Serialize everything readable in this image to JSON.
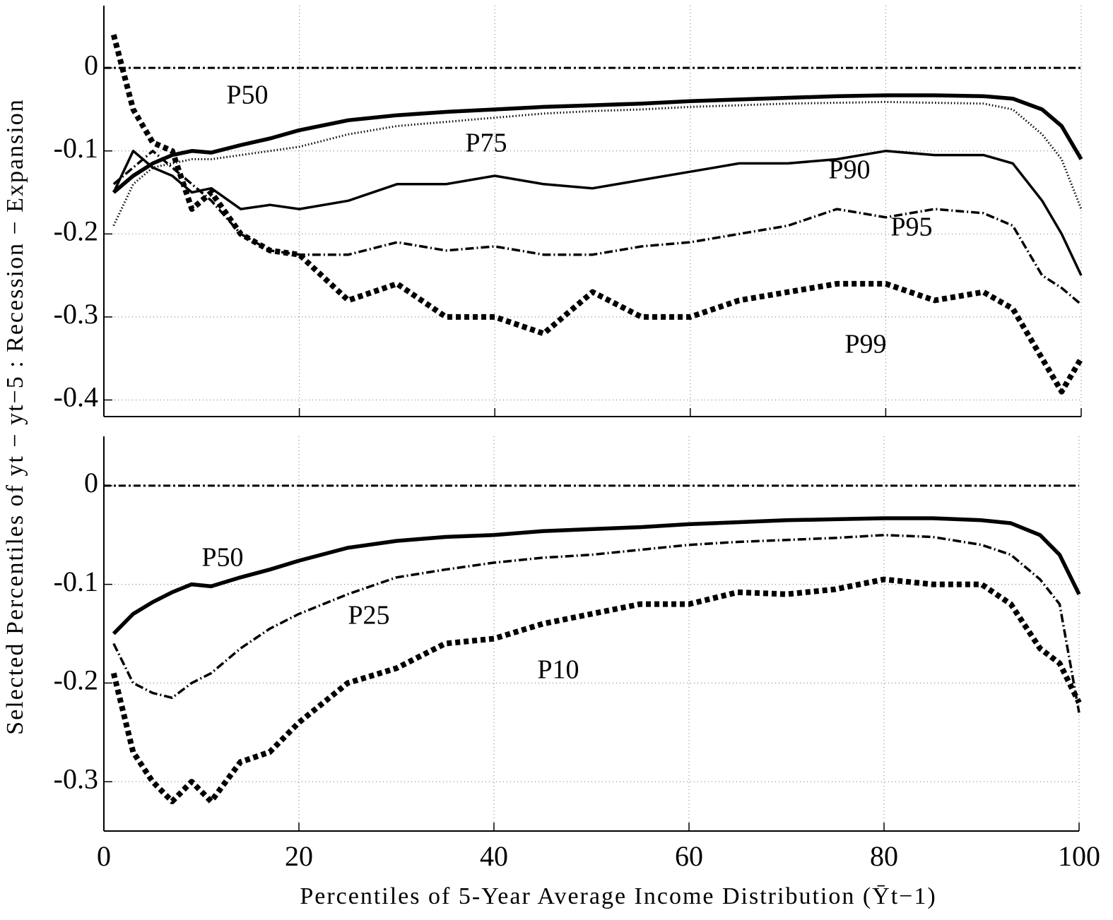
{
  "chart_data": [
    {
      "type": "line",
      "x": [
        1,
        3,
        5,
        7,
        9,
        11,
        14,
        17,
        20,
        25,
        30,
        35,
        40,
        45,
        50,
        55,
        60,
        65,
        70,
        75,
        80,
        85,
        90,
        93,
        96,
        98,
        100
      ],
      "series": [
        {
          "name": "P50",
          "color": "#000000",
          "style": "solid",
          "weight": "thick",
          "values": [
            -0.15,
            -0.13,
            -0.115,
            -0.105,
            -0.1,
            -0.102,
            -0.093,
            -0.085,
            -0.075,
            -0.063,
            -0.057,
            -0.053,
            -0.05,
            -0.047,
            -0.045,
            -0.043,
            -0.04,
            -0.038,
            -0.036,
            -0.034,
            -0.033,
            -0.033,
            -0.034,
            -0.037,
            -0.05,
            -0.07,
            -0.11
          ]
        },
        {
          "name": "P75",
          "color": "#000000",
          "style": "dotted",
          "weight": "thin",
          "values": [
            -0.19,
            -0.14,
            -0.12,
            -0.115,
            -0.11,
            -0.11,
            -0.105,
            -0.1,
            -0.095,
            -0.08,
            -0.07,
            -0.065,
            -0.06,
            -0.055,
            -0.052,
            -0.05,
            -0.047,
            -0.045,
            -0.043,
            -0.042,
            -0.041,
            -0.042,
            -0.043,
            -0.05,
            -0.08,
            -0.11,
            -0.17
          ]
        },
        {
          "name": "P90",
          "color": "#000000",
          "style": "solid",
          "weight": "thin",
          "values": [
            -0.15,
            -0.1,
            -0.12,
            -0.13,
            -0.15,
            -0.145,
            -0.17,
            -0.165,
            -0.17,
            -0.16,
            -0.14,
            -0.14,
            -0.13,
            -0.14,
            -0.145,
            -0.135,
            -0.125,
            -0.115,
            -0.115,
            -0.11,
            -0.1,
            -0.105,
            -0.105,
            -0.115,
            -0.16,
            -0.2,
            -0.25
          ]
        },
        {
          "name": "P95",
          "color": "#000000",
          "style": "dash-dot",
          "weight": "thin",
          "values": [
            -0.14,
            -0.12,
            -0.1,
            -0.12,
            -0.14,
            -0.16,
            -0.2,
            -0.22,
            -0.225,
            -0.225,
            -0.21,
            -0.22,
            -0.215,
            -0.225,
            -0.225,
            -0.215,
            -0.21,
            -0.2,
            -0.19,
            -0.17,
            -0.18,
            -0.17,
            -0.175,
            -0.19,
            -0.25,
            -0.265,
            -0.285
          ]
        },
        {
          "name": "P99",
          "color": "#000000",
          "style": "dotted",
          "weight": "thick",
          "values": [
            0.04,
            -0.05,
            -0.09,
            -0.1,
            -0.17,
            -0.15,
            -0.2,
            -0.22,
            -0.225,
            -0.28,
            -0.26,
            -0.3,
            -0.3,
            -0.32,
            -0.27,
            -0.3,
            -0.3,
            -0.28,
            -0.27,
            -0.26,
            -0.26,
            -0.28,
            -0.27,
            -0.29,
            -0.35,
            -0.39,
            -0.35
          ]
        }
      ],
      "annotations": [
        "P50",
        "P75",
        "P90",
        "P95",
        "P99"
      ],
      "xlim": [
        0,
        100
      ],
      "xticks": [
        0,
        20,
        40,
        60,
        80,
        100
      ],
      "xtick_labels": false,
      "ylim": [
        -0.42,
        0.075
      ],
      "yticks": [
        -0.4,
        -0.3,
        -0.2,
        -0.1,
        0
      ],
      "grid": true,
      "zero_line": true
    },
    {
      "type": "line",
      "x": [
        1,
        3,
        5,
        7,
        9,
        11,
        14,
        17,
        20,
        25,
        30,
        35,
        40,
        45,
        50,
        55,
        60,
        65,
        70,
        75,
        80,
        85,
        90,
        93,
        96,
        98,
        100
      ],
      "series": [
        {
          "name": "P50",
          "color": "#000000",
          "style": "solid",
          "weight": "thick",
          "values": [
            -0.15,
            -0.13,
            -0.118,
            -0.108,
            -0.1,
            -0.102,
            -0.093,
            -0.085,
            -0.076,
            -0.063,
            -0.056,
            -0.052,
            -0.05,
            -0.046,
            -0.044,
            -0.042,
            -0.039,
            -0.037,
            -0.035,
            -0.034,
            -0.033,
            -0.033,
            -0.035,
            -0.038,
            -0.05,
            -0.07,
            -0.11
          ]
        },
        {
          "name": "P25",
          "color": "#000000",
          "style": "dash-dot",
          "weight": "thin",
          "values": [
            -0.16,
            -0.2,
            -0.21,
            -0.215,
            -0.2,
            -0.19,
            -0.165,
            -0.145,
            -0.13,
            -0.11,
            -0.093,
            -0.085,
            -0.078,
            -0.073,
            -0.07,
            -0.065,
            -0.06,
            -0.057,
            -0.055,
            -0.053,
            -0.05,
            -0.052,
            -0.06,
            -0.07,
            -0.095,
            -0.12,
            -0.23
          ]
        },
        {
          "name": "P10",
          "color": "#000000",
          "style": "dotted",
          "weight": "thick",
          "values": [
            -0.19,
            -0.27,
            -0.3,
            -0.32,
            -0.3,
            -0.32,
            -0.28,
            -0.27,
            -0.24,
            -0.2,
            -0.185,
            -0.16,
            -0.155,
            -0.14,
            -0.13,
            -0.12,
            -0.12,
            -0.108,
            -0.11,
            -0.105,
            -0.095,
            -0.1,
            -0.1,
            -0.12,
            -0.165,
            -0.18,
            -0.22
          ]
        }
      ],
      "annotations": [
        "P50",
        "P25",
        "P10"
      ],
      "xlim": [
        0,
        100
      ],
      "xticks": [
        0,
        20,
        40,
        60,
        80,
        100
      ],
      "xtick_labels": true,
      "ylim": [
        -0.35,
        0.05
      ],
      "yticks": [
        -0.3,
        -0.2,
        -0.1,
        0
      ],
      "grid": true,
      "zero_line": true
    }
  ],
  "xlabel": "Percentiles of 5-Year Average Income Distribution (Ȳt−1)",
  "ylabel": "Selected Percentiles of yt − yt−5 : Recession − Expansion"
}
